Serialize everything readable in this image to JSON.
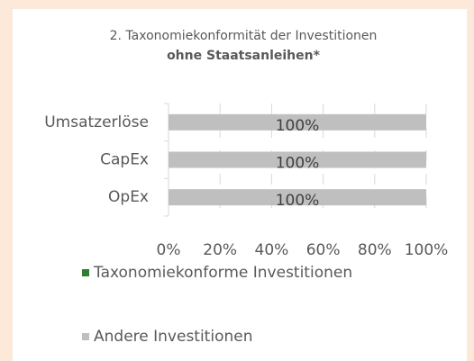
{
  "chart_data": {
    "type": "bar",
    "orientation": "horizontal",
    "stacked": true,
    "title": "2. Taxonomiekonformität der Investitionen",
    "subtitle": "ohne Staatsanleihen*",
    "categories": [
      "Umsatzerlöse",
      "CapEx",
      "OpEx"
    ],
    "series": [
      {
        "name": "Taxonomiekonforme Investitionen",
        "color": "#2e7d32",
        "values": [
          0,
          0,
          0
        ]
      },
      {
        "name": "Andere Investitionen",
        "color": "#bfbfbf",
        "values": [
          100,
          100,
          100
        ],
        "value_labels": [
          "100%",
          "100%",
          "100%"
        ]
      }
    ],
    "xlim": [
      0,
      100
    ],
    "xticks": [
      {
        "value": 0,
        "label": "0%"
      },
      {
        "value": 20,
        "label": "20%"
      },
      {
        "value": 40,
        "label": "40%"
      },
      {
        "value": 60,
        "label": "60%"
      },
      {
        "value": 80,
        "label": "80%"
      },
      {
        "value": 100,
        "label": "100%"
      }
    ],
    "grid": true,
    "legend": "bottom"
  }
}
